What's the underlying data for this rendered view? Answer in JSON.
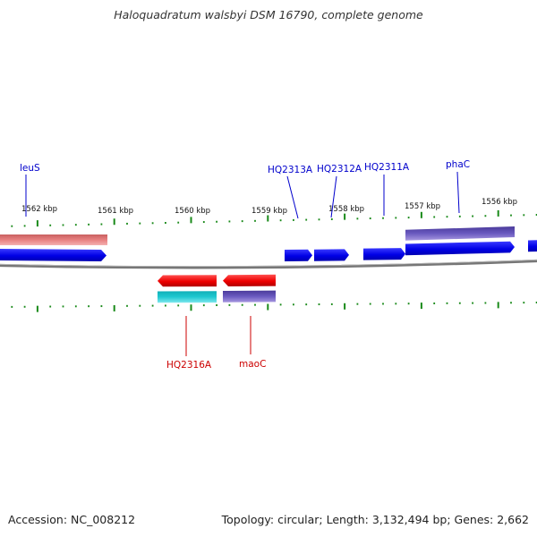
{
  "header": {
    "title": "Haloquadratum walsbyi DSM 16790, complete genome"
  },
  "footer": {
    "accession": "Accession: NC_008212",
    "topology": "Topology: circular; Length: 3,132,494 bp; Genes: 2,662"
  },
  "ticks": [
    "1562 kbp",
    "1561 kbp",
    "1560 kbp",
    "1559 kbp",
    "1558 kbp",
    "1557 kbp",
    "1556 kbp"
  ],
  "gene_labels": [
    {
      "text": "leuS",
      "color": "#0000cc"
    },
    {
      "text": "HQ2313A",
      "color": "#0000cc"
    },
    {
      "text": "HQ2312A",
      "color": "#0000cc"
    },
    {
      "text": "HQ2311A",
      "color": "#0000cc"
    },
    {
      "text": "phaC",
      "color": "#0000cc"
    },
    {
      "text": "HQ2316A",
      "color": "#cc0000"
    },
    {
      "text": "maoC",
      "color": "#cc0000"
    }
  ],
  "colors": {
    "cds_plus": "#0000ee",
    "cds_minus": "#ee0000",
    "gene_plus": "#e47878",
    "gene_cyan": "#18c0c8",
    "gene_purple": "#6655b8",
    "tick_green": "#1a8a1a",
    "backbone": "#888888"
  }
}
